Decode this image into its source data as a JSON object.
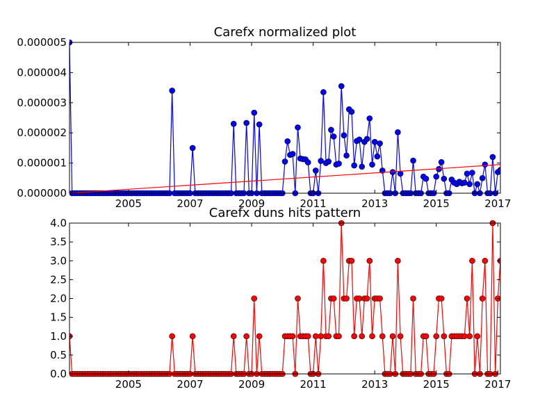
{
  "chart_data": [
    {
      "type": "line",
      "title": "Carefx normalized plot",
      "xlim": [
        2003.083,
        2017.083
      ],
      "xticks": [
        2005,
        2007,
        2009,
        2011,
        2013,
        2015,
        2017
      ],
      "ylim": [
        0,
        5e-06
      ],
      "yticks": [
        {
          "value": 0,
          "label": "0.000000"
        },
        {
          "value": 1e-06,
          "label": "0.000001"
        },
        {
          "value": 2e-06,
          "label": "0.000002"
        },
        {
          "value": 3e-06,
          "label": "0.000003"
        },
        {
          "value": 4e-06,
          "label": "0.000004"
        },
        {
          "value": 5e-06,
          "label": "0.000005"
        }
      ],
      "series": [
        {
          "color": "#0000ff",
          "marker": true,
          "x": [
            2003.083,
            2003.167,
            2003.25,
            2003.333,
            2003.417,
            2003.5,
            2003.583,
            2003.667,
            2003.75,
            2003.833,
            2003.917,
            2004,
            2004.083,
            2004.167,
            2004.25,
            2004.333,
            2004.417,
            2004.5,
            2004.583,
            2004.667,
            2004.75,
            2004.833,
            2004.917,
            2005,
            2005.083,
            2005.167,
            2005.25,
            2005.333,
            2005.417,
            2005.5,
            2005.583,
            2005.667,
            2005.75,
            2005.833,
            2005.917,
            2006,
            2006.083,
            2006.167,
            2006.25,
            2006.333,
            2006.417,
            2006.5,
            2006.583,
            2006.667,
            2006.75,
            2006.833,
            2006.917,
            2007,
            2007.083,
            2007.167,
            2007.25,
            2007.333,
            2007.417,
            2007.5,
            2007.583,
            2007.667,
            2007.75,
            2007.833,
            2007.917,
            2008,
            2008.083,
            2008.167,
            2008.25,
            2008.333,
            2008.417,
            2008.5,
            2008.583,
            2008.667,
            2008.75,
            2008.833,
            2008.917,
            2009,
            2009.083,
            2009.167,
            2009.25,
            2009.333,
            2009.417,
            2009.5,
            2009.583,
            2009.667,
            2009.75,
            2009.833,
            2009.917,
            2010,
            2010.083,
            2010.167,
            2010.25,
            2010.333,
            2010.417,
            2010.5,
            2010.583,
            2010.667,
            2010.75,
            2010.833,
            2010.917,
            2011,
            2011.083,
            2011.167,
            2011.25,
            2011.333,
            2011.417,
            2011.5,
            2011.583,
            2011.667,
            2011.75,
            2011.833,
            2011.917,
            2012,
            2012.083,
            2012.167,
            2012.25,
            2012.333,
            2012.417,
            2012.5,
            2012.583,
            2012.667,
            2012.75,
            2012.833,
            2012.917,
            2013,
            2013.083,
            2013.167,
            2013.25,
            2013.333,
            2013.417,
            2013.5,
            2013.583,
            2013.667,
            2013.75,
            2013.833,
            2013.917,
            2014,
            2014.083,
            2014.167,
            2014.25,
            2014.333,
            2014.417,
            2014.5,
            2014.583,
            2014.667,
            2014.75,
            2014.833,
            2014.917,
            2015,
            2015.083,
            2015.167,
            2015.25,
            2015.333,
            2015.417,
            2015.5,
            2015.583,
            2015.667,
            2015.75,
            2015.833,
            2015.917,
            2016,
            2016.083,
            2016.167,
            2016.25,
            2016.333,
            2016.417,
            2016.5,
            2016.583,
            2016.667,
            2016.75,
            2016.833,
            2016.917,
            2017,
            2017.083
          ],
          "values": [
            5e-06,
            0,
            0,
            0,
            0,
            0,
            0,
            0,
            0,
            0,
            0,
            0,
            0,
            0,
            0,
            0,
            0,
            0,
            0,
            0,
            0,
            0,
            0,
            0,
            0,
            0,
            0,
            0,
            0,
            0,
            0,
            0,
            0,
            0,
            0,
            0,
            0,
            0,
            0,
            0,
            3.4e-06,
            0,
            0,
            0,
            0,
            0,
            0,
            0,
            1.5e-06,
            0,
            0,
            0,
            0,
            0,
            0,
            0,
            0,
            0,
            0,
            0,
            0,
            0,
            0,
            0,
            2.3e-06,
            0,
            0,
            0,
            0,
            2.33e-06,
            0,
            0,
            2.67e-06,
            0,
            2.28e-06,
            0,
            0,
            0,
            0,
            0,
            0,
            0,
            0,
            0,
            1.05e-06,
            1.72e-06,
            1.27e-06,
            1.3e-06,
            0,
            2.18e-06,
            1.15e-06,
            1.13e-06,
            1.12e-06,
            1.02e-06,
            0,
            0,
            7.5e-07,
            0,
            1.07e-06,
            3.35e-06,
            1e-06,
            1.05e-06,
            2.1e-06,
            1.88e-06,
            9.5e-07,
            9.8e-07,
            3.55e-06,
            1.92e-06,
            1.25e-06,
            2.78e-06,
            2.7e-06,
            9.2e-07,
            1.73e-06,
            1.78e-06,
            8.8e-07,
            1.7e-06,
            1.8e-06,
            2.48e-06,
            9.5e-07,
            1.7e-06,
            1.22e-06,
            1.65e-06,
            7.5e-07,
            0,
            0,
            0,
            7e-07,
            0,
            2.02e-06,
            6.5e-07,
            0,
            0,
            0,
            0,
            1.08e-06,
            0,
            0,
            0,
            5.5e-07,
            4.8e-07,
            0,
            0,
            0,
            5.5e-07,
            8e-07,
            1.03e-06,
            4.8e-07,
            0,
            0,
            4.5e-07,
            3.5e-07,
            3e-07,
            3.8e-07,
            3.3e-07,
            3.5e-07,
            6.5e-07,
            3e-07,
            6.8e-07,
            0,
            3e-07,
            0,
            5e-07,
            9.5e-07,
            0,
            0,
            1.2e-06,
            0,
            7e-07,
            7.7e-07
          ]
        },
        {
          "color": "#ff0000",
          "marker": false,
          "x": [
            2003.083,
            2017.083
          ],
          "values": [
            0,
            9.5e-07
          ]
        }
      ]
    },
    {
      "type": "line",
      "title": "Carefx duns hits pattern",
      "xlim": [
        2003.083,
        2017.083
      ],
      "xticks": [
        2005,
        2007,
        2009,
        2011,
        2013,
        2015,
        2017
      ],
      "ylim": [
        0,
        4
      ],
      "yticks": [
        {
          "value": 0,
          "label": "0.0"
        },
        0.5,
        {
          "value": 1,
          "label": "1.0"
        },
        1.5,
        {
          "value": 2,
          "label": "2.0"
        },
        2.5,
        {
          "value": 3,
          "label": "3.0"
        },
        3.5,
        {
          "value": 4,
          "label": "4.0"
        }
      ],
      "series": [
        {
          "color": "#ff0000",
          "marker": true,
          "x": [
            2003.083,
            2003.167,
            2003.25,
            2003.333,
            2003.417,
            2003.5,
            2003.583,
            2003.667,
            2003.75,
            2003.833,
            2003.917,
            2004,
            2004.083,
            2004.167,
            2004.25,
            2004.333,
            2004.417,
            2004.5,
            2004.583,
            2004.667,
            2004.75,
            2004.833,
            2004.917,
            2005,
            2005.083,
            2005.167,
            2005.25,
            2005.333,
            2005.417,
            2005.5,
            2005.583,
            2005.667,
            2005.75,
            2005.833,
            2005.917,
            2006,
            2006.083,
            2006.167,
            2006.25,
            2006.333,
            2006.417,
            2006.5,
            2006.583,
            2006.667,
            2006.75,
            2006.833,
            2006.917,
            2007,
            2007.083,
            2007.167,
            2007.25,
            2007.333,
            2007.417,
            2007.5,
            2007.583,
            2007.667,
            2007.75,
            2007.833,
            2007.917,
            2008,
            2008.083,
            2008.167,
            2008.25,
            2008.333,
            2008.417,
            2008.5,
            2008.583,
            2008.667,
            2008.75,
            2008.833,
            2008.917,
            2009,
            2009.083,
            2009.167,
            2009.25,
            2009.333,
            2009.417,
            2009.5,
            2009.583,
            2009.667,
            2009.75,
            2009.833,
            2009.917,
            2010,
            2010.083,
            2010.167,
            2010.25,
            2010.333,
            2010.417,
            2010.5,
            2010.583,
            2010.667,
            2010.75,
            2010.833,
            2010.917,
            2011,
            2011.083,
            2011.167,
            2011.25,
            2011.333,
            2011.417,
            2011.5,
            2011.583,
            2011.667,
            2011.75,
            2011.833,
            2011.917,
            2012,
            2012.083,
            2012.167,
            2012.25,
            2012.333,
            2012.417,
            2012.5,
            2012.583,
            2012.667,
            2012.75,
            2012.833,
            2012.917,
            2013,
            2013.083,
            2013.167,
            2013.25,
            2013.333,
            2013.417,
            2013.5,
            2013.583,
            2013.667,
            2013.75,
            2013.833,
            2013.917,
            2014,
            2014.083,
            2014.167,
            2014.25,
            2014.333,
            2014.417,
            2014.5,
            2014.583,
            2014.667,
            2014.75,
            2014.833,
            2014.917,
            2015,
            2015.083,
            2015.167,
            2015.25,
            2015.333,
            2015.417,
            2015.5,
            2015.583,
            2015.667,
            2015.75,
            2015.833,
            2015.917,
            2016,
            2016.083,
            2016.167,
            2016.25,
            2016.333,
            2016.417,
            2016.5,
            2016.583,
            2016.667,
            2016.75,
            2016.833,
            2016.917,
            2017,
            2017.083
          ],
          "values": [
            1,
            0,
            0,
            0,
            0,
            0,
            0,
            0,
            0,
            0,
            0,
            0,
            0,
            0,
            0,
            0,
            0,
            0,
            0,
            0,
            0,
            0,
            0,
            0,
            0,
            0,
            0,
            0,
            0,
            0,
            0,
            0,
            0,
            0,
            0,
            0,
            0,
            0,
            0,
            0,
            1,
            0,
            0,
            0,
            0,
            0,
            0,
            0,
            1,
            0,
            0,
            0,
            0,
            0,
            0,
            0,
            0,
            0,
            0,
            0,
            0,
            0,
            0,
            0,
            1,
            0,
            0,
            0,
            0,
            1,
            0,
            0,
            2,
            0,
            1,
            0,
            0,
            0,
            0,
            0,
            0,
            0,
            0,
            0,
            1,
            1,
            1,
            1,
            0,
            2,
            1,
            1,
            1,
            1,
            0,
            0,
            1,
            0,
            1,
            3,
            1,
            1,
            2,
            2,
            1,
            1,
            4,
            2,
            2,
            3,
            3,
            1,
            2,
            2,
            1,
            2,
            2,
            3,
            1,
            2,
            2,
            2,
            1,
            0,
            0,
            0,
            1,
            0,
            3,
            1,
            0,
            0,
            0,
            0,
            2,
            0,
            0,
            0,
            1,
            1,
            0,
            0,
            0,
            1,
            2,
            2,
            1,
            0,
            0,
            1,
            1,
            1,
            1,
            1,
            1,
            2,
            1,
            3,
            0,
            1,
            0,
            2,
            3,
            0,
            0,
            4,
            0,
            2,
            3
          ]
        }
      ]
    }
  ]
}
